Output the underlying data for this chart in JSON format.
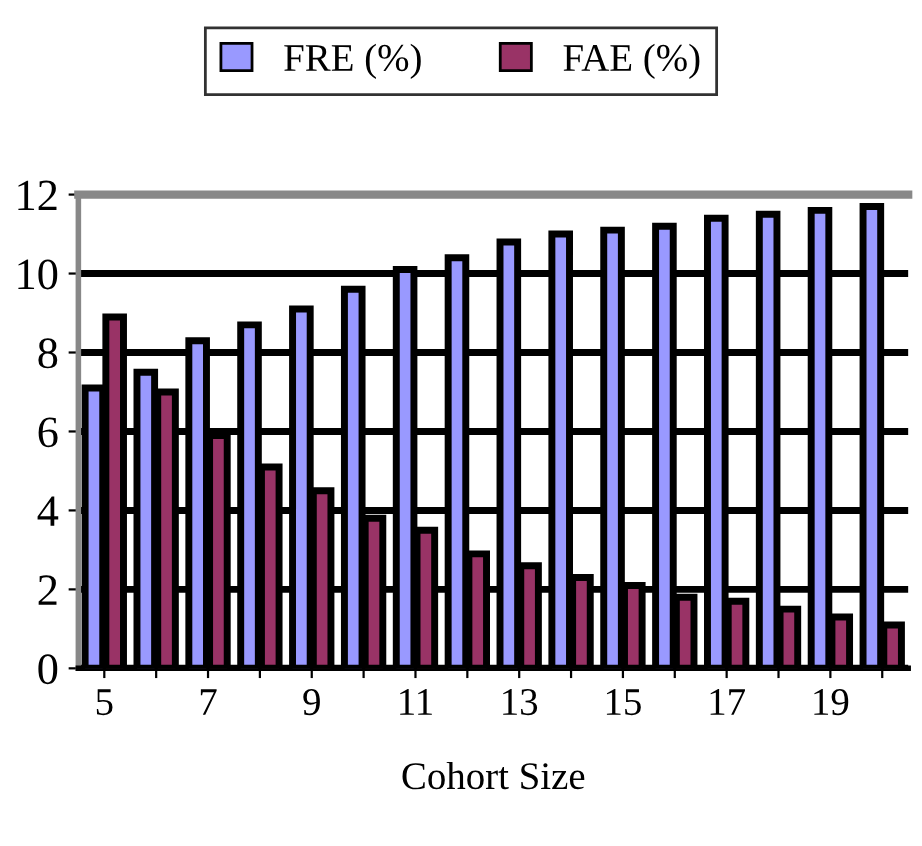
{
  "chart_data": {
    "type": "bar",
    "xlabel": "Cohort Size",
    "categories": [
      "5",
      null,
      "7",
      null,
      "9",
      null,
      "11",
      null,
      "13",
      null,
      "15",
      null,
      "17",
      null,
      "19",
      null
    ],
    "series": [
      {
        "name": "FRE (%)",
        "color": "#9999ff",
        "values": [
          7.1,
          7.5,
          8.3,
          8.7,
          9.1,
          9.6,
          10.1,
          10.4,
          10.8,
          11.0,
          11.1,
          11.2,
          11.4,
          11.5,
          11.6,
          11.7
        ]
      },
      {
        "name": "FAE (%)",
        "color": "#993366",
        "values": [
          8.9,
          7.0,
          5.9,
          5.1,
          4.5,
          3.8,
          3.5,
          2.9,
          2.6,
          2.3,
          2.1,
          1.8,
          1.7,
          1.5,
          1.3,
          1.1
        ]
      }
    ],
    "ylim": [
      0,
      12
    ],
    "yticks": [
      0,
      2,
      4,
      6,
      8,
      10,
      12
    ],
    "grid": "y",
    "legend": "top"
  }
}
